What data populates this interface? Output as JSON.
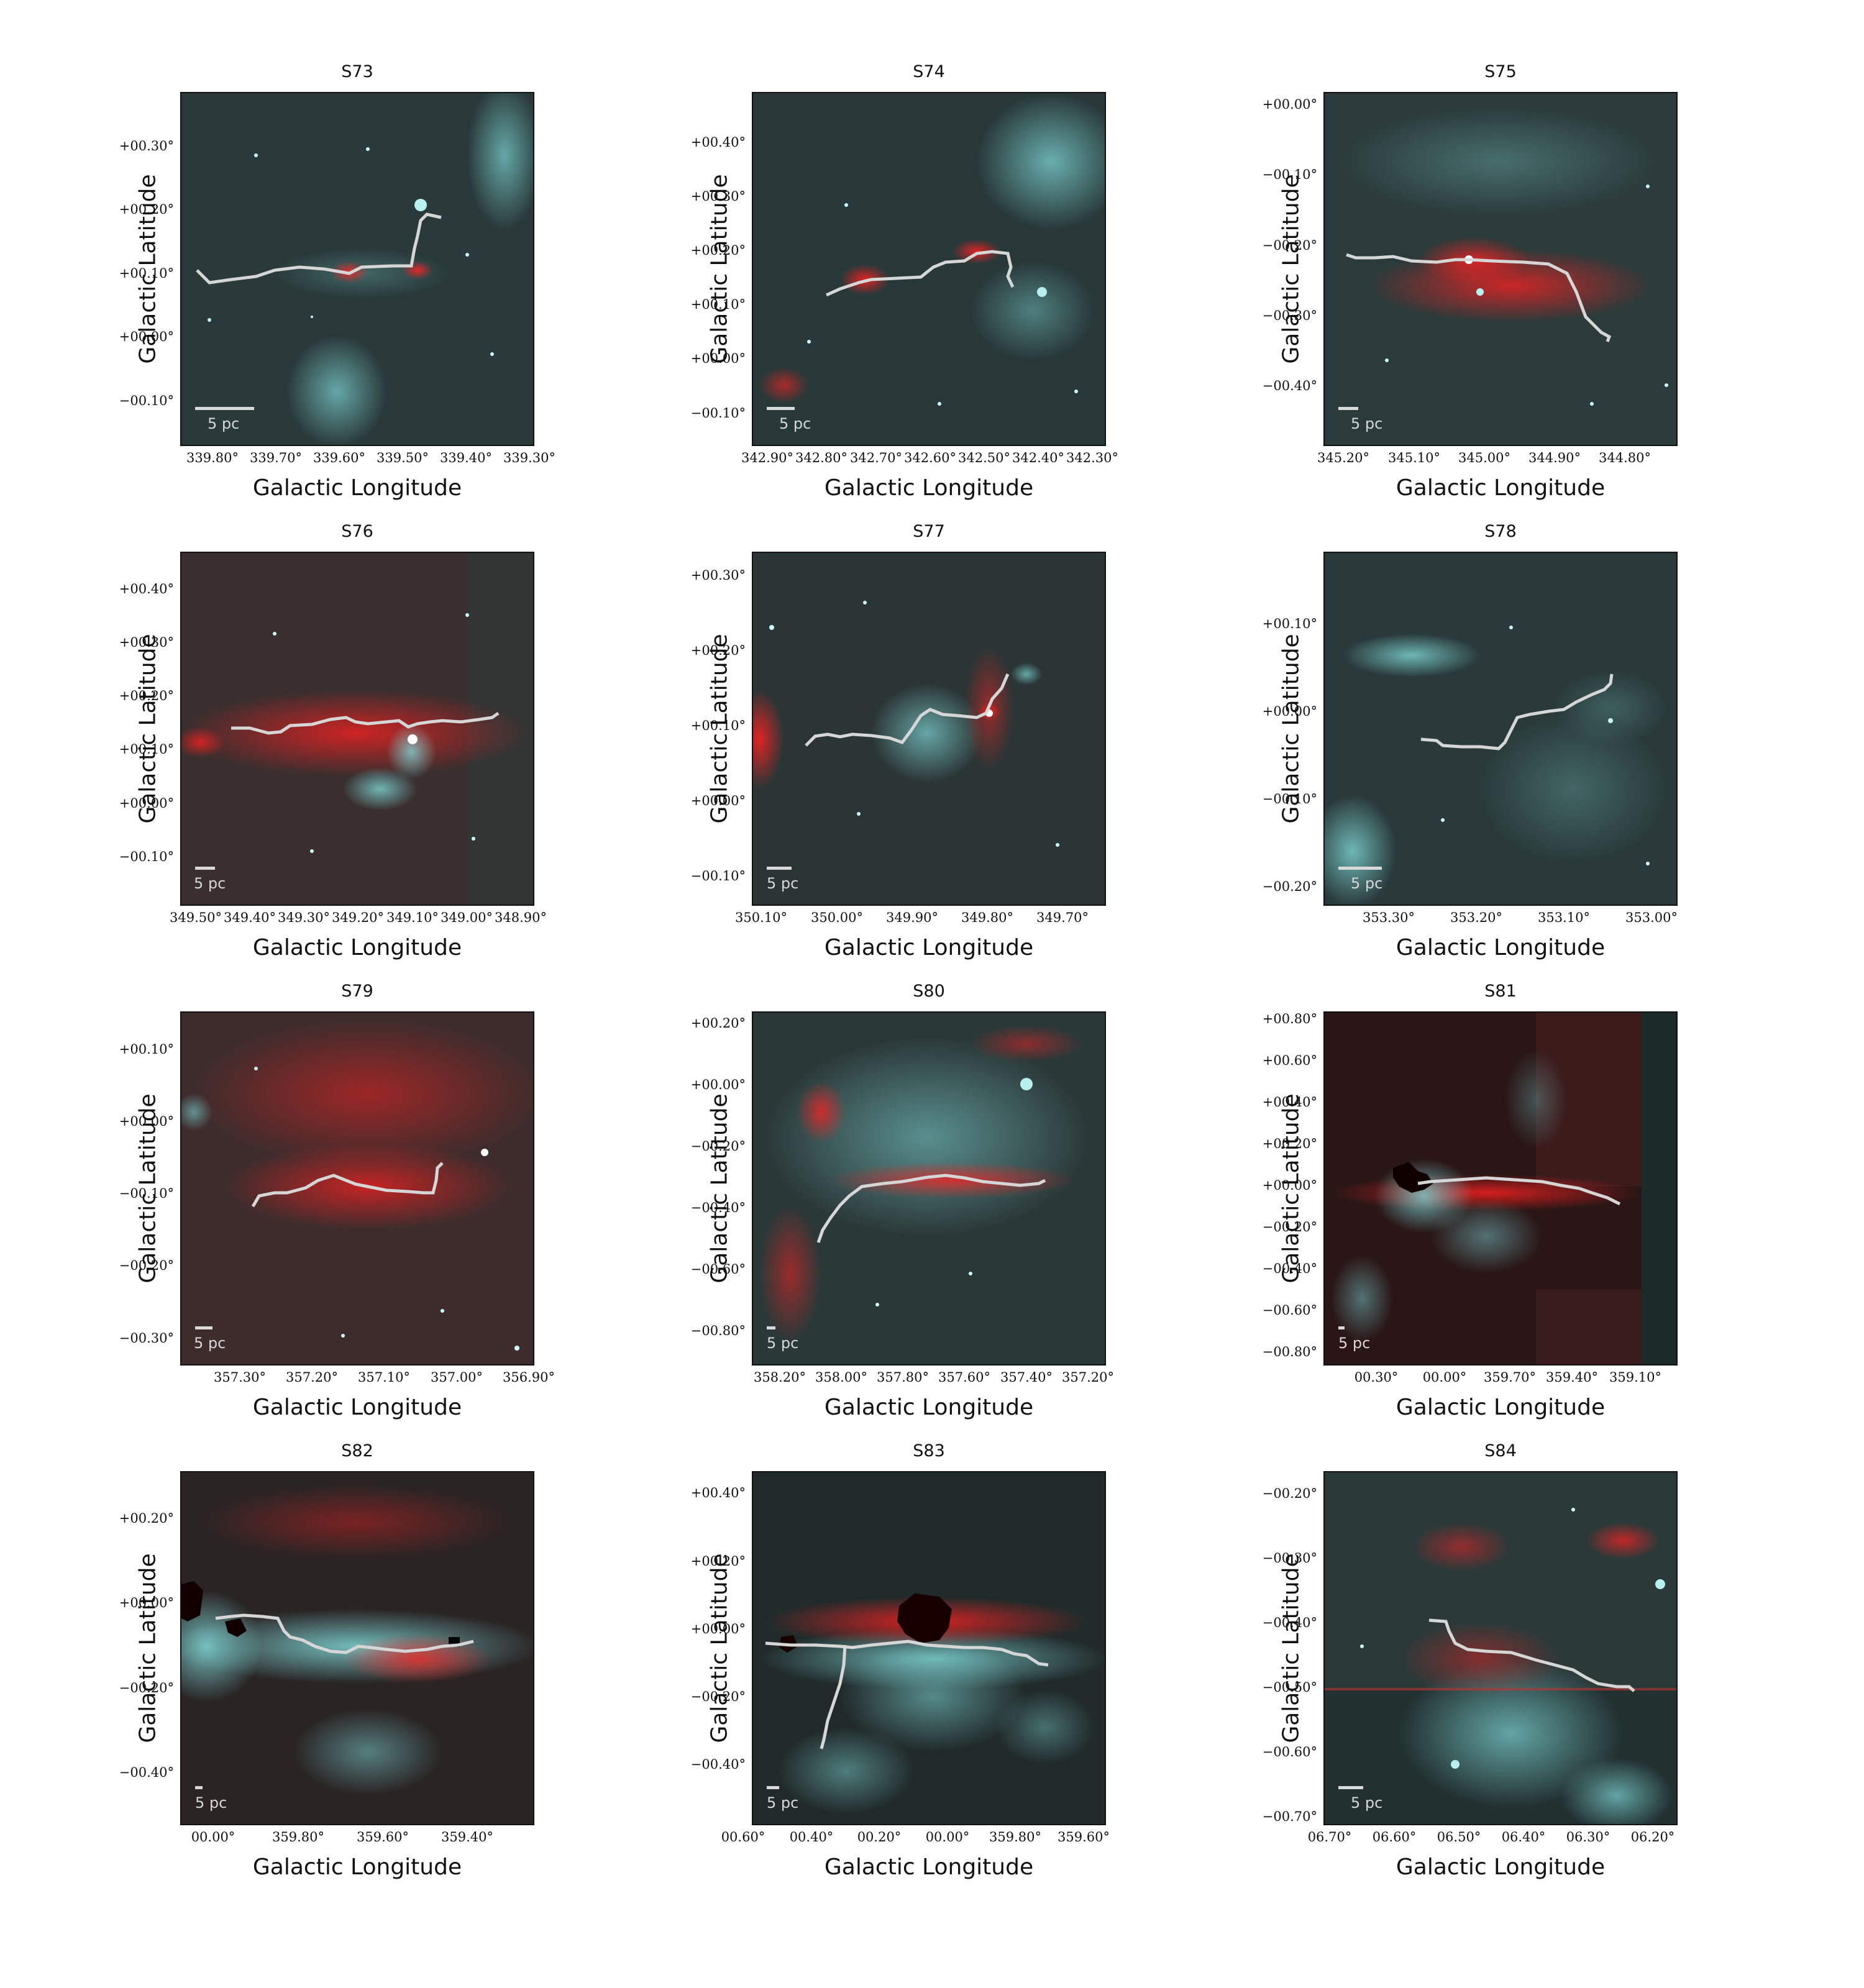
{
  "axis_titles": {
    "x": "Galactic Longitude",
    "y": "Galactic Latitude"
  },
  "scale_label": "5 pc",
  "panels": [
    {
      "id": "S73",
      "title": "S73",
      "xticks": [
        "339.80°",
        "339.70°",
        "339.60°",
        "339.50°",
        "339.40°",
        "339.30°"
      ],
      "yticks": [
        "+00.30°",
        "+00.20°",
        "+00.10°",
        "+00.00°",
        "−00.10°"
      ]
    },
    {
      "id": "S74",
      "title": "S74",
      "xticks": [
        "342.90°",
        "342.80°",
        "342.70°",
        "342.60°",
        "342.50°",
        "342.40°",
        "342.30°"
      ],
      "yticks": [
        "+00.40°",
        "+00.30°",
        "+00.20°",
        "+00.10°",
        "+00.00°",
        "−00.10°"
      ]
    },
    {
      "id": "S75",
      "title": "S75",
      "xticks": [
        "345.20°",
        "345.10°",
        "345.00°",
        "344.90°",
        "344.80°"
      ],
      "yticks": [
        "+00.00°",
        "−00.10°",
        "−00.20°",
        "−00.30°",
        "−00.40°"
      ]
    },
    {
      "id": "S76",
      "title": "S76",
      "xticks": [
        "349.50°",
        "349.40°",
        "349.30°",
        "349.20°",
        "349.10°",
        "349.00°",
        "348.90°"
      ],
      "yticks": [
        "+00.40°",
        "+00.30°",
        "+00.20°",
        "+00.10°",
        "+00.00°",
        "−00.10°"
      ]
    },
    {
      "id": "S77",
      "title": "S77",
      "xticks": [
        "350.10°",
        "350.00°",
        "349.90°",
        "349.80°",
        "349.70°"
      ],
      "yticks": [
        "+00.30°",
        "+00.20°",
        "+00.10°",
        "+00.00°",
        "−00.10°"
      ]
    },
    {
      "id": "S78",
      "title": "S78",
      "xticks": [
        "353.30°",
        "353.20°",
        "353.10°",
        "353.00°"
      ],
      "yticks": [
        "+00.10°",
        "+00.00°",
        "−00.10°",
        "−00.20°"
      ]
    },
    {
      "id": "S79",
      "title": "S79",
      "xticks": [
        "357.30°",
        "357.20°",
        "357.10°",
        "357.00°",
        "356.90°"
      ],
      "yticks": [
        "+00.10°",
        "+00.00°",
        "−00.10°",
        "−00.20°",
        "−00.30°"
      ]
    },
    {
      "id": "S80",
      "title": "S80",
      "xticks": [
        "358.20°",
        "358.00°",
        "357.80°",
        "357.60°",
        "357.40°",
        "357.20°"
      ],
      "yticks": [
        "+00.20°",
        "+00.00°",
        "−00.20°",
        "−00.40°",
        "−00.60°",
        "−00.80°"
      ]
    },
    {
      "id": "S81",
      "title": "S81",
      "xticks": [
        "00.30°",
        "00.00°",
        "359.70°",
        "359.40°",
        "359.10°"
      ],
      "yticks": [
        "+00.80°",
        "+00.60°",
        "+00.40°",
        "+00.20°",
        "+00.00°",
        "−00.20°",
        "−00.40°",
        "−00.60°",
        "−00.80°"
      ]
    },
    {
      "id": "S82",
      "title": "S82",
      "xticks": [
        "00.00°",
        "359.80°",
        "359.60°",
        "359.40°"
      ],
      "yticks": [
        "+00.20°",
        "+00.00°",
        "−00.20°",
        "−00.40°"
      ]
    },
    {
      "id": "S83",
      "title": "S83",
      "xticks": [
        "00.60°",
        "00.40°",
        "00.20°",
        "00.00°",
        "359.80°",
        "359.60°"
      ],
      "yticks": [
        "+00.40°",
        "+00.20°",
        "+00.00°",
        "−00.20°",
        "−00.40°"
      ]
    },
    {
      "id": "S84",
      "title": "S84",
      "xticks": [
        "06.70°",
        "06.60°",
        "06.50°",
        "06.40°",
        "06.30°",
        "06.20°"
      ],
      "yticks": [
        "−00.20°",
        "−00.30°",
        "−00.40°",
        "−00.50°",
        "−00.60°",
        "−00.70°"
      ]
    }
  ]
}
